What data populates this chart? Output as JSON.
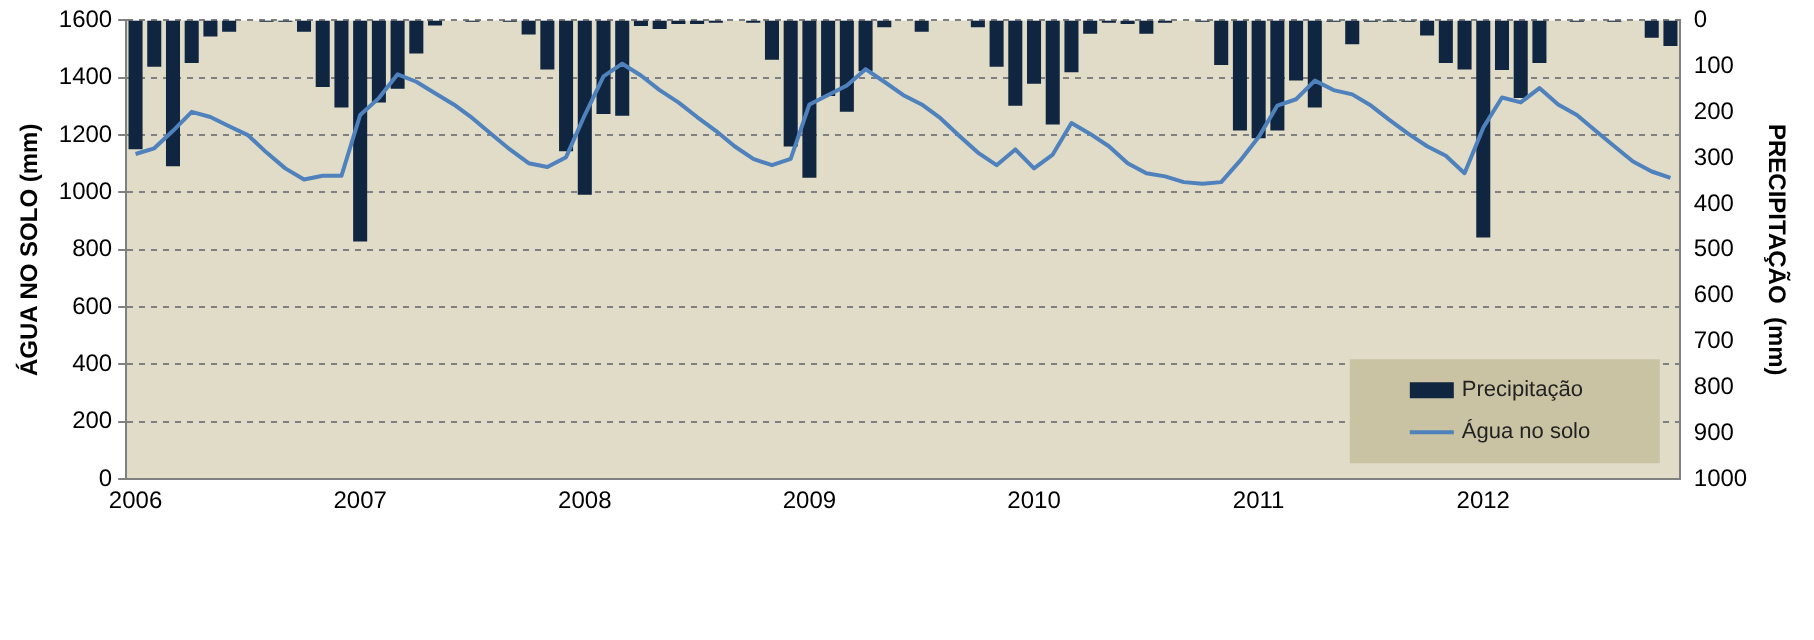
{
  "chart_data": {
    "type": "bar",
    "categories": [
      "2006",
      null,
      null,
      null,
      null,
      null,
      null,
      null,
      null,
      null,
      null,
      null,
      "2007",
      null,
      null,
      null,
      null,
      null,
      null,
      null,
      null,
      null,
      null,
      null,
      "2008",
      null,
      null,
      null,
      null,
      null,
      null,
      null,
      null,
      null,
      null,
      null,
      "2009",
      null,
      null,
      null,
      null,
      null,
      null,
      null,
      null,
      null,
      null,
      null,
      "2010",
      null,
      null,
      null,
      null,
      null,
      null,
      null,
      null,
      null,
      null,
      null,
      "2011",
      null,
      null,
      null,
      null,
      null,
      null,
      null,
      null,
      null,
      null,
      null,
      "2012",
      null,
      null,
      null,
      null,
      null,
      null,
      null,
      null,
      null,
      null
    ],
    "series": [
      {
        "name": "Precipitação",
        "axis": "y2",
        "color": "#0f2540",
        "values": [
          281,
          101,
          318,
          93,
          35,
          25,
          0,
          3,
          3,
          25,
          145,
          190,
          482,
          179,
          149,
          72,
          11,
          0,
          3,
          0,
          3,
          31,
          107,
          285,
          380,
          204,
          208,
          12,
          19,
          8,
          8,
          5,
          0,
          5,
          86,
          275,
          343,
          165,
          199,
          111,
          15,
          0,
          25,
          0,
          0,
          15,
          101,
          186,
          138,
          227,
          113,
          29,
          5,
          8,
          29,
          5,
          0,
          3,
          97,
          240,
          257,
          240,
          131,
          190,
          3,
          52,
          3,
          3,
          3,
          33,
          93,
          107,
          473,
          108,
          169,
          93,
          0,
          3,
          0,
          3,
          0,
          38,
          56
        ]
      },
      {
        "name": "Água no solo",
        "type": "line",
        "axis": "y",
        "color": "#4f81bd",
        "values": [
          1134,
          1154,
          1215,
          1281,
          1263,
          1231,
          1200,
          1139,
          1084,
          1045,
          1058,
          1058,
          1270,
          1329,
          1412,
          1386,
          1346,
          1307,
          1259,
          1204,
          1150,
          1102,
          1089,
          1123,
          1270,
          1405,
          1449,
          1408,
          1357,
          1314,
          1263,
          1215,
          1161,
          1117,
          1095,
          1117,
          1307,
          1340,
          1373,
          1430,
          1386,
          1340,
          1307,
          1259,
          1198,
          1139,
          1095,
          1150,
          1084,
          1132,
          1242,
          1204,
          1161,
          1102,
          1067,
          1056,
          1036,
          1030,
          1036,
          1110,
          1193,
          1303,
          1325,
          1390,
          1357,
          1342,
          1303,
          1252,
          1204,
          1161,
          1128,
          1067,
          1226,
          1331,
          1314,
          1364,
          1307,
          1270,
          1215,
          1161,
          1108,
          1073,
          1051
        ]
      }
    ],
    "ylabel": "ÁGUA NO SOLO (mm)",
    "y2label": "PRECIPITAÇÃO  (mm)",
    "ylim": [
      0,
      1600
    ],
    "yticks": [
      0,
      200,
      400,
      600,
      800,
      1000,
      1200,
      1400,
      1600
    ],
    "y2lim": [
      1000,
      0
    ],
    "y2ticks": [
      0,
      100,
      200,
      300,
      400,
      500,
      600,
      700,
      800,
      900,
      1000
    ],
    "grid": "y",
    "legend": "bottom right",
    "marker": "none",
    "line_style": "solid"
  }
}
